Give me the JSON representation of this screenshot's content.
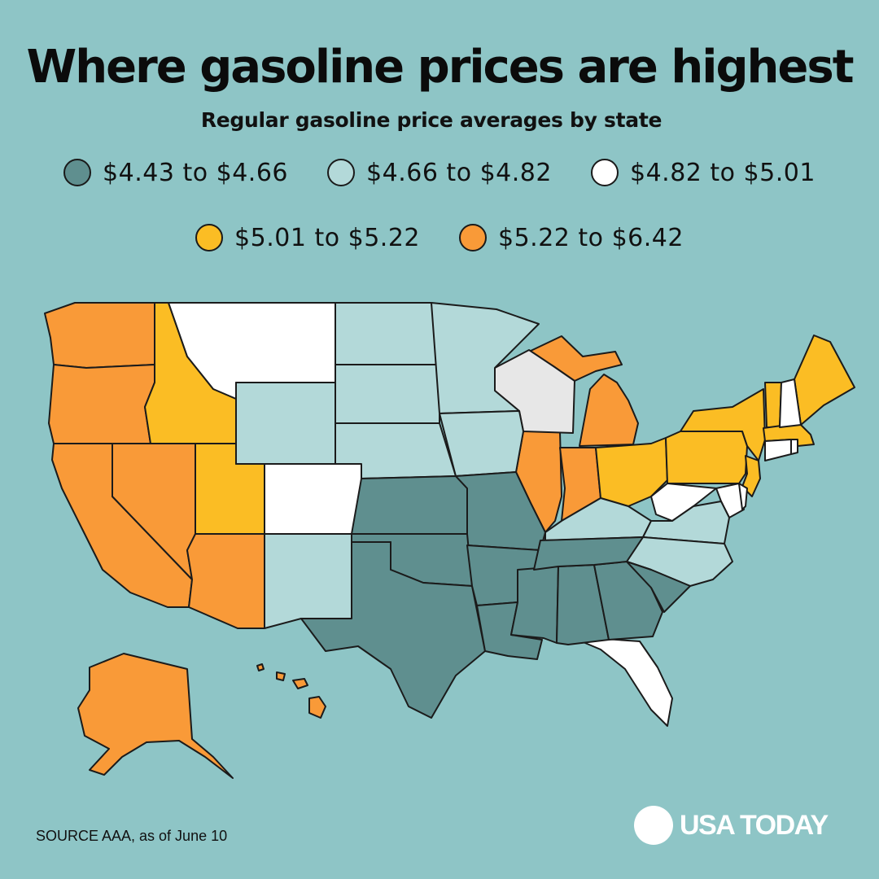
{
  "title": "Where gasoline prices are highest",
  "subtitle": "Regular gasoline price averages by state",
  "legend": [
    {
      "label": "$4.43 to $4.66",
      "color": "#5f8f8f"
    },
    {
      "label": "$4.66 to $4.82",
      "color": "#b3d9d9"
    },
    {
      "label": "$4.82 to $5.01",
      "color": "#ffffff"
    },
    {
      "label": "$5.01 to $5.22",
      "color": "#fbbd24"
    },
    {
      "label": "$5.22 to $6.42",
      "color": "#f99a38"
    }
  ],
  "state_tiers": {
    "$5.22 to $6.42": [
      "Washington",
      "Oregon",
      "California",
      "Nevada",
      "Arizona",
      "Illinois",
      "Indiana",
      "Michigan",
      "Alaska",
      "Hawaii"
    ],
    "$5.01 to $5.22": [
      "Idaho",
      "Utah",
      "Ohio",
      "Pennsylvania",
      "New York",
      "New Jersey",
      "Vermont",
      "Maine",
      "Massachusetts"
    ],
    "$4.82 to $5.01": [
      "Montana",
      "Colorado",
      "West Virginia",
      "Delaware",
      "Maryland",
      "New Hampshire",
      "Connecticut",
      "Rhode Island",
      "Florida",
      "Wisconsin"
    ],
    "$4.66 to $4.82": [
      "North Dakota",
      "South Dakota",
      "Wyoming",
      "Nebraska",
      "Minnesota",
      "Iowa",
      "New Mexico",
      "Kentucky",
      "Virginia",
      "North Carolina"
    ],
    "$4.43 to $4.66": [
      "Kansas",
      "Missouri",
      "Oklahoma",
      "Texas",
      "Arkansas",
      "Louisiana",
      "Mississippi",
      "Alabama",
      "Georgia",
      "Tennessee",
      "South Carolina"
    ]
  },
  "source": "SOURCE AAA, as of June 10",
  "logo_text": "USA TODAY"
}
